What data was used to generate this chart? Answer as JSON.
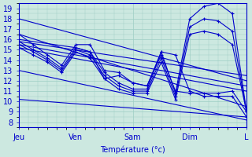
{
  "title": "",
  "xlabel": "Température (°c)",
  "ylabel": "",
  "xlim": [
    0,
    96
  ],
  "ylim": [
    7.5,
    19.5
  ],
  "yticks": [
    8,
    9,
    10,
    11,
    12,
    13,
    14,
    15,
    16,
    17,
    18,
    19
  ],
  "xtick_positions": [
    0,
    24,
    48,
    72,
    96
  ],
  "xtick_labels": [
    "Jeu",
    "Ven",
    "Sam",
    "Dim",
    "L"
  ],
  "background_color": "#cce8e0",
  "grid_color": "#9ecec4",
  "line_color": "#0000cc",
  "lines": [
    {
      "x": [
        0,
        96
      ],
      "y": [
        18.0,
        12.0
      ]
    },
    {
      "x": [
        0,
        96
      ],
      "y": [
        16.5,
        9.5
      ]
    },
    {
      "x": [
        0,
        96
      ],
      "y": [
        15.8,
        12.5
      ]
    },
    {
      "x": [
        0,
        96
      ],
      "y": [
        15.5,
        11.5
      ]
    },
    {
      "x": [
        0,
        96
      ],
      "y": [
        15.2,
        11.0
      ]
    },
    {
      "x": [
        0,
        96
      ],
      "y": [
        13.0,
        8.2
      ]
    },
    {
      "x": [
        0,
        96
      ],
      "y": [
        10.2,
        8.5
      ]
    },
    {
      "x": [
        0,
        24,
        30,
        36,
        42,
        48,
        54,
        60,
        66,
        72,
        78,
        84,
        90,
        96
      ],
      "y": [
        16.0,
        15.2,
        14.8,
        12.2,
        12.5,
        11.8,
        11.5,
        14.8,
        14.5,
        11.0,
        10.5,
        10.5,
        10.5,
        8.5
      ]
    },
    {
      "x": [
        0,
        6,
        12,
        18,
        24,
        30,
        36,
        42,
        48,
        54,
        60,
        66,
        72,
        78,
        84,
        90,
        96
      ],
      "y": [
        16.5,
        15.5,
        14.5,
        13.5,
        15.5,
        15.5,
        13.0,
        12.8,
        11.8,
        11.5,
        14.5,
        11.0,
        10.8,
        10.8,
        10.8,
        11.0,
        9.0
      ]
    },
    {
      "x": [
        0,
        6,
        12,
        18,
        24,
        30,
        36,
        42,
        48,
        54,
        60,
        66,
        72,
        78,
        84,
        90,
        96
      ],
      "y": [
        15.8,
        15.0,
        14.2,
        13.2,
        15.2,
        14.8,
        12.8,
        11.8,
        11.2,
        11.2,
        14.8,
        10.8,
        18.0,
        19.2,
        19.5,
        18.5,
        9.0
      ]
    },
    {
      "x": [
        0,
        6,
        12,
        18,
        24,
        30,
        36,
        42,
        48,
        54,
        60,
        66,
        72,
        78,
        84,
        90,
        96
      ],
      "y": [
        15.5,
        14.8,
        14.0,
        13.0,
        15.0,
        14.5,
        12.5,
        11.5,
        11.0,
        11.0,
        14.2,
        10.5,
        17.2,
        18.0,
        17.8,
        16.8,
        9.0
      ]
    },
    {
      "x": [
        0,
        6,
        12,
        18,
        24,
        30,
        36,
        42,
        48,
        54,
        60,
        66,
        72,
        78,
        84,
        90,
        96
      ],
      "y": [
        15.2,
        14.5,
        13.8,
        12.8,
        14.8,
        14.2,
        12.2,
        11.2,
        10.8,
        10.8,
        13.8,
        10.2,
        16.5,
        16.8,
        16.5,
        15.5,
        9.0
      ]
    }
  ]
}
